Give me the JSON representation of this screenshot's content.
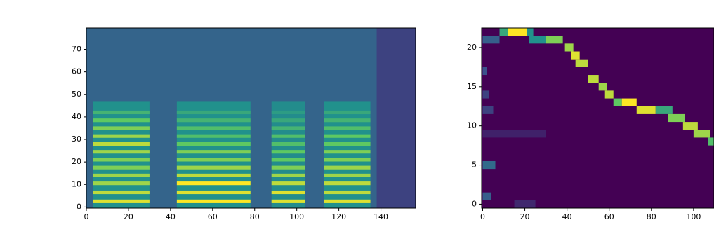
{
  "chart_data": [
    {
      "type": "spectrogram",
      "colormap": [
        "#440154",
        "#3b528b",
        "#21918c",
        "#5ec962",
        "#fde725"
      ],
      "vlim": [
        0,
        1
      ],
      "xlim": [
        0,
        156.5
      ],
      "ylim": [
        -0.5,
        79.5
      ],
      "xticks": [
        0,
        20,
        40,
        60,
        80,
        100,
        120,
        140
      ],
      "yticks": [
        0,
        10,
        20,
        30,
        40,
        50,
        60,
        70
      ],
      "background": 0.32,
      "tail": {
        "x": [
          138,
          156.5
        ],
        "value": 0.2
      },
      "base_y": [
        -0.5,
        47
      ],
      "harmonic_y": [
        2.5,
        6.5,
        10.5,
        14,
        17.5,
        21,
        24.5,
        28,
        31.5,
        35,
        38.5,
        42
      ],
      "regions": [
        {
          "x": [
            3,
            30
          ],
          "base": 0.5,
          "levels": [
            0.95,
            0.9,
            0.85,
            0.85,
            0.8,
            0.8,
            0.85,
            0.9,
            0.85,
            0.8,
            0.75,
            0.65
          ]
        },
        {
          "x": [
            43,
            78
          ],
          "base": 0.5,
          "levels": [
            1,
            0.95,
            1,
            0.9,
            0.85,
            0.8,
            0.8,
            0.75,
            0.7,
            0.7,
            0.65,
            0.6
          ]
        },
        {
          "x": [
            88,
            104
          ],
          "base": 0.48,
          "levels": [
            0.95,
            0.95,
            0.9,
            0.85,
            0.8,
            0.75,
            0.75,
            0.7,
            0.7,
            0.65,
            0.6,
            0.55
          ]
        },
        {
          "x": [
            113,
            135
          ],
          "base": 0.5,
          "levels": [
            0.95,
            0.9,
            0.9,
            0.85,
            0.85,
            0.8,
            0.8,
            0.75,
            0.75,
            0.7,
            0.65,
            0.6
          ]
        }
      ]
    },
    {
      "type": "heatmap",
      "colormap": [
        "#440154",
        "#3b528b",
        "#21918c",
        "#5ec962",
        "#fde725"
      ],
      "vlim": [
        0,
        1
      ],
      "xlim": [
        -0.5,
        109.7
      ],
      "ylim": [
        -0.5,
        22.5
      ],
      "xticks": [
        0,
        20,
        40,
        60,
        80,
        100
      ],
      "yticks": [
        0,
        5,
        10,
        15,
        20
      ],
      "background": 0,
      "cells": [
        {
          "x": [
            8,
            12
          ],
          "y": 22,
          "value": 0.6
        },
        {
          "x": [
            12,
            21
          ],
          "y": 22,
          "value": 1
        },
        {
          "x": [
            21,
            24
          ],
          "y": 22,
          "value": 0.5
        },
        {
          "x": [
            0,
            8
          ],
          "y": 21,
          "value": 0.3
        },
        {
          "x": [
            22,
            30
          ],
          "y": 21,
          "value": 0.5
        },
        {
          "x": [
            30,
            38
          ],
          "y": 21,
          "value": 0.8
        },
        {
          "x": [
            39,
            43
          ],
          "y": 20,
          "value": 0.85
        },
        {
          "x": [
            42,
            46
          ],
          "y": 19,
          "value": 0.95
        },
        {
          "x": [
            44,
            50
          ],
          "y": 18,
          "value": 0.9
        },
        {
          "x": [
            0,
            2
          ],
          "y": 17,
          "value": 0.25
        },
        {
          "x": [
            50,
            55
          ],
          "y": 16,
          "value": 0.9
        },
        {
          "x": [
            55,
            59
          ],
          "y": 15,
          "value": 0.85
        },
        {
          "x": [
            0,
            3
          ],
          "y": 14,
          "value": 0.2
        },
        {
          "x": [
            58,
            62
          ],
          "y": 14,
          "value": 0.9
        },
        {
          "x": [
            62,
            66
          ],
          "y": 13,
          "value": 0.75
        },
        {
          "x": [
            66,
            73
          ],
          "y": 13,
          "value": 1
        },
        {
          "x": [
            0,
            5
          ],
          "y": 12,
          "value": 0.2
        },
        {
          "x": [
            73,
            82
          ],
          "y": 12,
          "value": 0.95
        },
        {
          "x": [
            82,
            90
          ],
          "y": 12,
          "value": 0.6
        },
        {
          "x": [
            88,
            96
          ],
          "y": 11,
          "value": 0.8
        },
        {
          "x": [
            95,
            102
          ],
          "y": 10,
          "value": 0.9
        },
        {
          "x": [
            100,
            108
          ],
          "y": 9,
          "value": 0.85
        },
        {
          "x": [
            0,
            30
          ],
          "y": 9,
          "value": 0.1
        },
        {
          "x": [
            107,
            110
          ],
          "y": 8,
          "value": 0.7
        },
        {
          "x": [
            0,
            6
          ],
          "y": 5,
          "value": 0.35
        },
        {
          "x": [
            0,
            4
          ],
          "y": 1,
          "value": 0.3
        },
        {
          "x": [
            15,
            25
          ],
          "y": 0,
          "value": 0.12
        }
      ]
    }
  ]
}
